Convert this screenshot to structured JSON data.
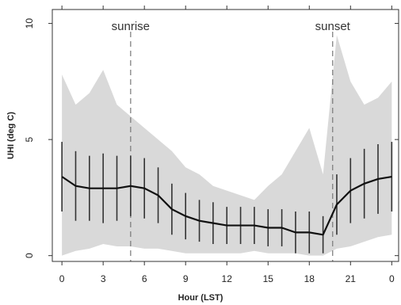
{
  "chart_data": {
    "type": "line",
    "x_label": "Hour (LST)",
    "y_label": "UHI (deg C)",
    "x": [
      0,
      1,
      2,
      3,
      4,
      5,
      6,
      7,
      8,
      9,
      10,
      11,
      12,
      13,
      14,
      15,
      16,
      17,
      18,
      19,
      20,
      21,
      22,
      23,
      24
    ],
    "series": [
      {
        "color": "#111111",
        "values": [
          3.4,
          3.0,
          2.9,
          2.9,
          2.9,
          3.0,
          2.9,
          2.6,
          2.0,
          1.7,
          1.5,
          1.4,
          1.3,
          1.3,
          1.3,
          1.2,
          1.2,
          1.0,
          1.0,
          0.9,
          2.2,
          2.8,
          3.1,
          3.3,
          3.4
        ],
        "errors": [
          1.5,
          1.5,
          1.4,
          1.5,
          1.4,
          1.3,
          1.3,
          1.2,
          1.1,
          1.0,
          0.9,
          0.9,
          0.8,
          0.8,
          0.8,
          0.8,
          0.8,
          0.9,
          0.9,
          0.8,
          1.3,
          1.4,
          1.5,
          1.5,
          1.5
        ]
      }
    ],
    "band": {
      "color": "#d9d9d9",
      "upper": [
        7.8,
        6.5,
        7.0,
        8.0,
        6.5,
        6.0,
        5.5,
        5.0,
        4.5,
        3.8,
        3.5,
        3.0,
        2.8,
        2.6,
        2.4,
        3.0,
        3.5,
        4.5,
        5.5,
        3.5,
        9.5,
        7.5,
        6.5,
        6.8,
        7.5
      ],
      "lower": [
        0,
        0.2,
        0.3,
        0.5,
        0.4,
        0.4,
        0.3,
        0.3,
        0.2,
        0.1,
        0.1,
        0.1,
        0.1,
        0.1,
        0.2,
        0.1,
        0.1,
        0.1,
        0,
        0,
        0.3,
        0.4,
        0.6,
        0.8,
        0.9
      ]
    },
    "annotations": [
      {
        "text": "sunrise",
        "x": 5
      },
      {
        "text": "sunset",
        "x": 19.7
      }
    ],
    "xlim": [
      -0.7,
      24.5
    ],
    "ylim": [
      -0.25,
      10.6
    ],
    "xticks": [
      0,
      3,
      6,
      9,
      12,
      15,
      18,
      21,
      {
        "value": 24,
        "label": "0"
      }
    ],
    "yticks": [
      0,
      5,
      10
    ]
  }
}
